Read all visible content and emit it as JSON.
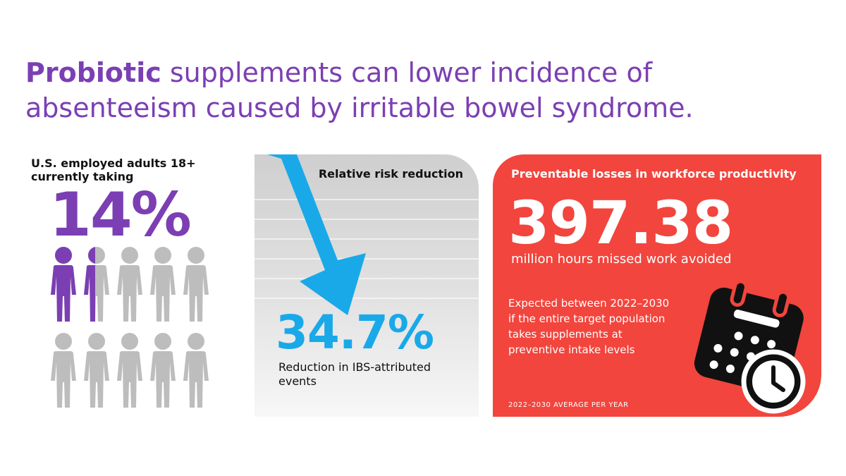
{
  "headline": {
    "strong": "Probiotic",
    "rest": " supplements can lower incidence of absenteeism caused by irritable bowel syndrome."
  },
  "usage_panel": {
    "label": "U.S. employed adults 18+ currently taking",
    "value": "14%",
    "icon": "person-icon",
    "people_total": 10,
    "people_highlighted": 1.4,
    "highlight_color": "#7b3fb3",
    "base_color": "#bdbdbd"
  },
  "risk_panel": {
    "title": "Relative risk reduction",
    "value": "34.7%",
    "description": "Reduction in IBS-attributed events",
    "icon": "down-arrow-icon",
    "accent_color": "#19a9e8"
  },
  "loss_panel": {
    "title": "Preventable losses in workforce productivity",
    "value": "397.38",
    "unit": "million hours missed work avoided",
    "note": "Expected between 2022–2030 if the entire target population takes supplements at preventive intake levels",
    "footnote": "2022–2030 AVERAGE PER YEAR",
    "icon": "calendar-clock-icon",
    "background_color": "#f2453d"
  }
}
